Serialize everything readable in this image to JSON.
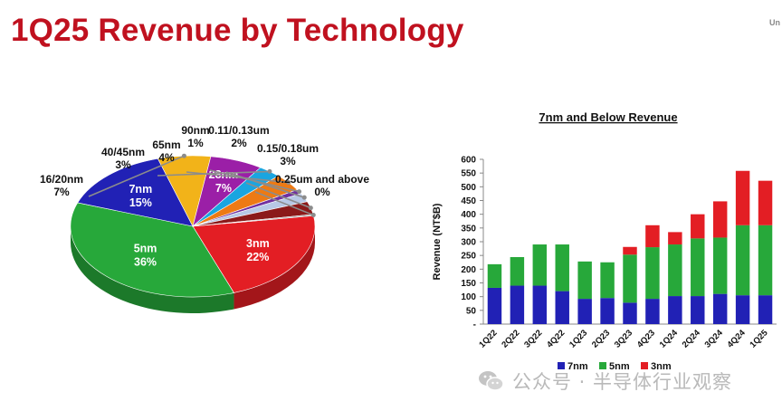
{
  "page": {
    "title": "1Q25 Revenue by Technology",
    "corner_label": "Un",
    "watermark_text": "公众号 · 半导体行业观察",
    "watermark_icon": "wechat-icon"
  },
  "chart_data": [
    {
      "type": "pie",
      "title": "",
      "slices": [
        {
          "label": "3nm",
          "value": 22,
          "display": "22%",
          "color": "#e31e24"
        },
        {
          "label": "5nm",
          "value": 36,
          "display": "36%",
          "color": "#27a83a"
        },
        {
          "label": "7nm",
          "value": 15,
          "display": "15%",
          "color": "#2121b5"
        },
        {
          "label": "16/20nm",
          "value": 7,
          "display": "7%",
          "color": "#f2b319"
        },
        {
          "label": "28nm",
          "value": 7,
          "display": "7%",
          "color": "#9b1fa7"
        },
        {
          "label": "40/45nm",
          "value": 3,
          "display": "3%",
          "color": "#1aa5e0"
        },
        {
          "label": "65nm",
          "value": 4,
          "display": "4%",
          "color": "#ed7a14"
        },
        {
          "label": "90nm",
          "value": 1,
          "display": "1%",
          "color": "#7030a0"
        },
        {
          "label": "0.11/0.13um",
          "value": 2,
          "display": "2%",
          "color": "#b7c9e6"
        },
        {
          "label": "0.15/0.18um",
          "value": 3,
          "display": "3%",
          "color": "#8b1a1a"
        },
        {
          "label": "0.25um and above",
          "value": 0,
          "display": "0%",
          "color": "#9a9a9a"
        }
      ]
    },
    {
      "type": "bar",
      "stacked": true,
      "title": "7nm and Below Revenue",
      "ylabel": "Revenue (NT$B)",
      "xlabel": "",
      "ylim": [
        0,
        600
      ],
      "yticks": [
        "-",
        "50",
        "100",
        "150",
        "200",
        "250",
        "300",
        "350",
        "400",
        "450",
        "500",
        "550",
        "600"
      ],
      "categories": [
        "1Q22",
        "2Q22",
        "3Q22",
        "4Q22",
        "1Q23",
        "2Q23",
        "3Q23",
        "4Q23",
        "1Q24",
        "2Q24",
        "3Q24",
        "4Q24",
        "1Q25"
      ],
      "legend_position": "bottom",
      "series": [
        {
          "name": "7nm",
          "color": "#2121b5",
          "values": [
            132,
            140,
            140,
            120,
            92,
            95,
            78,
            92,
            102,
            102,
            110,
            105,
            105
          ]
        },
        {
          "name": "5nm",
          "color": "#27a83a",
          "values": [
            86,
            104,
            150,
            170,
            136,
            130,
            175,
            188,
            188,
            210,
            205,
            255,
            255
          ]
        },
        {
          "name": "3nm",
          "color": "#e31e24",
          "values": [
            0,
            0,
            0,
            0,
            0,
            0,
            28,
            80,
            45,
            88,
            132,
            198,
            162
          ]
        }
      ]
    }
  ]
}
